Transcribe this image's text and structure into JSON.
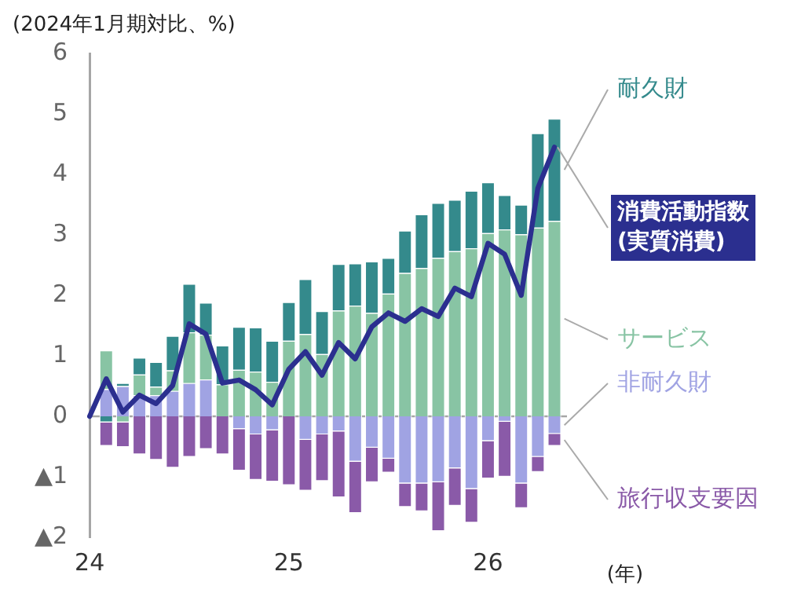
{
  "chart_data": {
    "type": "bar",
    "stacked": true,
    "ylabel": "(2024年1月期対比、%)",
    "xlabel": "(年)",
    "categories": [
      "24",
      null,
      null,
      null,
      null,
      null,
      null,
      null,
      null,
      null,
      null,
      null,
      "25",
      null,
      null,
      null,
      null,
      null,
      null,
      null,
      null,
      null,
      null,
      null,
      "26",
      null,
      null,
      null,
      null
    ],
    "ylim": [
      -2,
      6
    ],
    "yticks": [
      {
        "value": -2,
        "label": "▲2"
      },
      {
        "value": -1,
        "label": "▲1"
      },
      0,
      1,
      2,
      3,
      4,
      5,
      6
    ],
    "grid": false,
    "legend": false,
    "marker": "none",
    "ref_lines": [
      {
        "axis": "y",
        "value": 0,
        "color": "#a6a6a6"
      }
    ],
    "series": [
      {
        "name": "非耐久財",
        "color": "#a0a3e3",
        "values": [
          null,
          0.45,
          0.5,
          0.35,
          0.35,
          0.42,
          0.55,
          0.61,
          0,
          -0.21,
          -0.3,
          -0.23,
          0,
          -0.39,
          -0.3,
          -0.25,
          -0.75,
          -0.52,
          -0.7,
          -1.11,
          -1.11,
          -1.09,
          -0.86,
          -1.2,
          -0.41,
          -0.09,
          -1.11,
          -0.67,
          -0.29
        ]
      },
      {
        "name": "サービス",
        "color": "#88c4a4",
        "values": [
          null,
          0.64,
          -0.1,
          0.34,
          0.14,
          0.34,
          0.84,
          0.74,
          0.53,
          0.77,
          0.74,
          0.57,
          1.25,
          1.36,
          1.03,
          1.75,
          1.83,
          1.71,
          2.03,
          2.37,
          2.45,
          2.62,
          2.73,
          2.78,
          3.03,
          3.09,
          3.01,
          3.12,
          3.23
        ]
      },
      {
        "name": "耐久財",
        "color": "#348a8c",
        "values": [
          null,
          -0.1,
          0.05,
          0.28,
          0.41,
          0.57,
          0.8,
          0.53,
          0.64,
          0.71,
          0.73,
          0.68,
          0.64,
          0.91,
          0.71,
          0.77,
          0.7,
          0.85,
          0.59,
          0.7,
          0.89,
          0.91,
          0.85,
          0.95,
          0.84,
          0.57,
          0.49,
          1.56,
          1.69
        ]
      },
      {
        "name": "旅行収支要因",
        "color": "#8a5aa8",
        "values": [
          null,
          -0.39,
          -0.41,
          -0.63,
          -0.72,
          -0.85,
          -0.67,
          -0.54,
          -0.63,
          -0.69,
          -0.75,
          -0.85,
          -1.14,
          -0.84,
          -0.77,
          -1.09,
          -0.85,
          -0.57,
          -0.23,
          -0.39,
          -0.46,
          -0.81,
          -0.62,
          -0.56,
          -0.62,
          -0.91,
          -0.41,
          -0.25,
          -0.2
        ]
      },
      {
        "name": "消費活動指数\n(実質消費)",
        "type": "line",
        "color": "#2b2f8f",
        "values": [
          0,
          0.62,
          0.07,
          0.35,
          0.21,
          0.51,
          1.53,
          1.36,
          0.55,
          0.6,
          0.44,
          0.19,
          0.78,
          1.07,
          0.68,
          1.22,
          0.95,
          1.48,
          1.71,
          1.57,
          1.78,
          1.65,
          2.12,
          1.98,
          2.86,
          2.68,
          2.0,
          3.77,
          4.45
        ]
      }
    ]
  }
}
